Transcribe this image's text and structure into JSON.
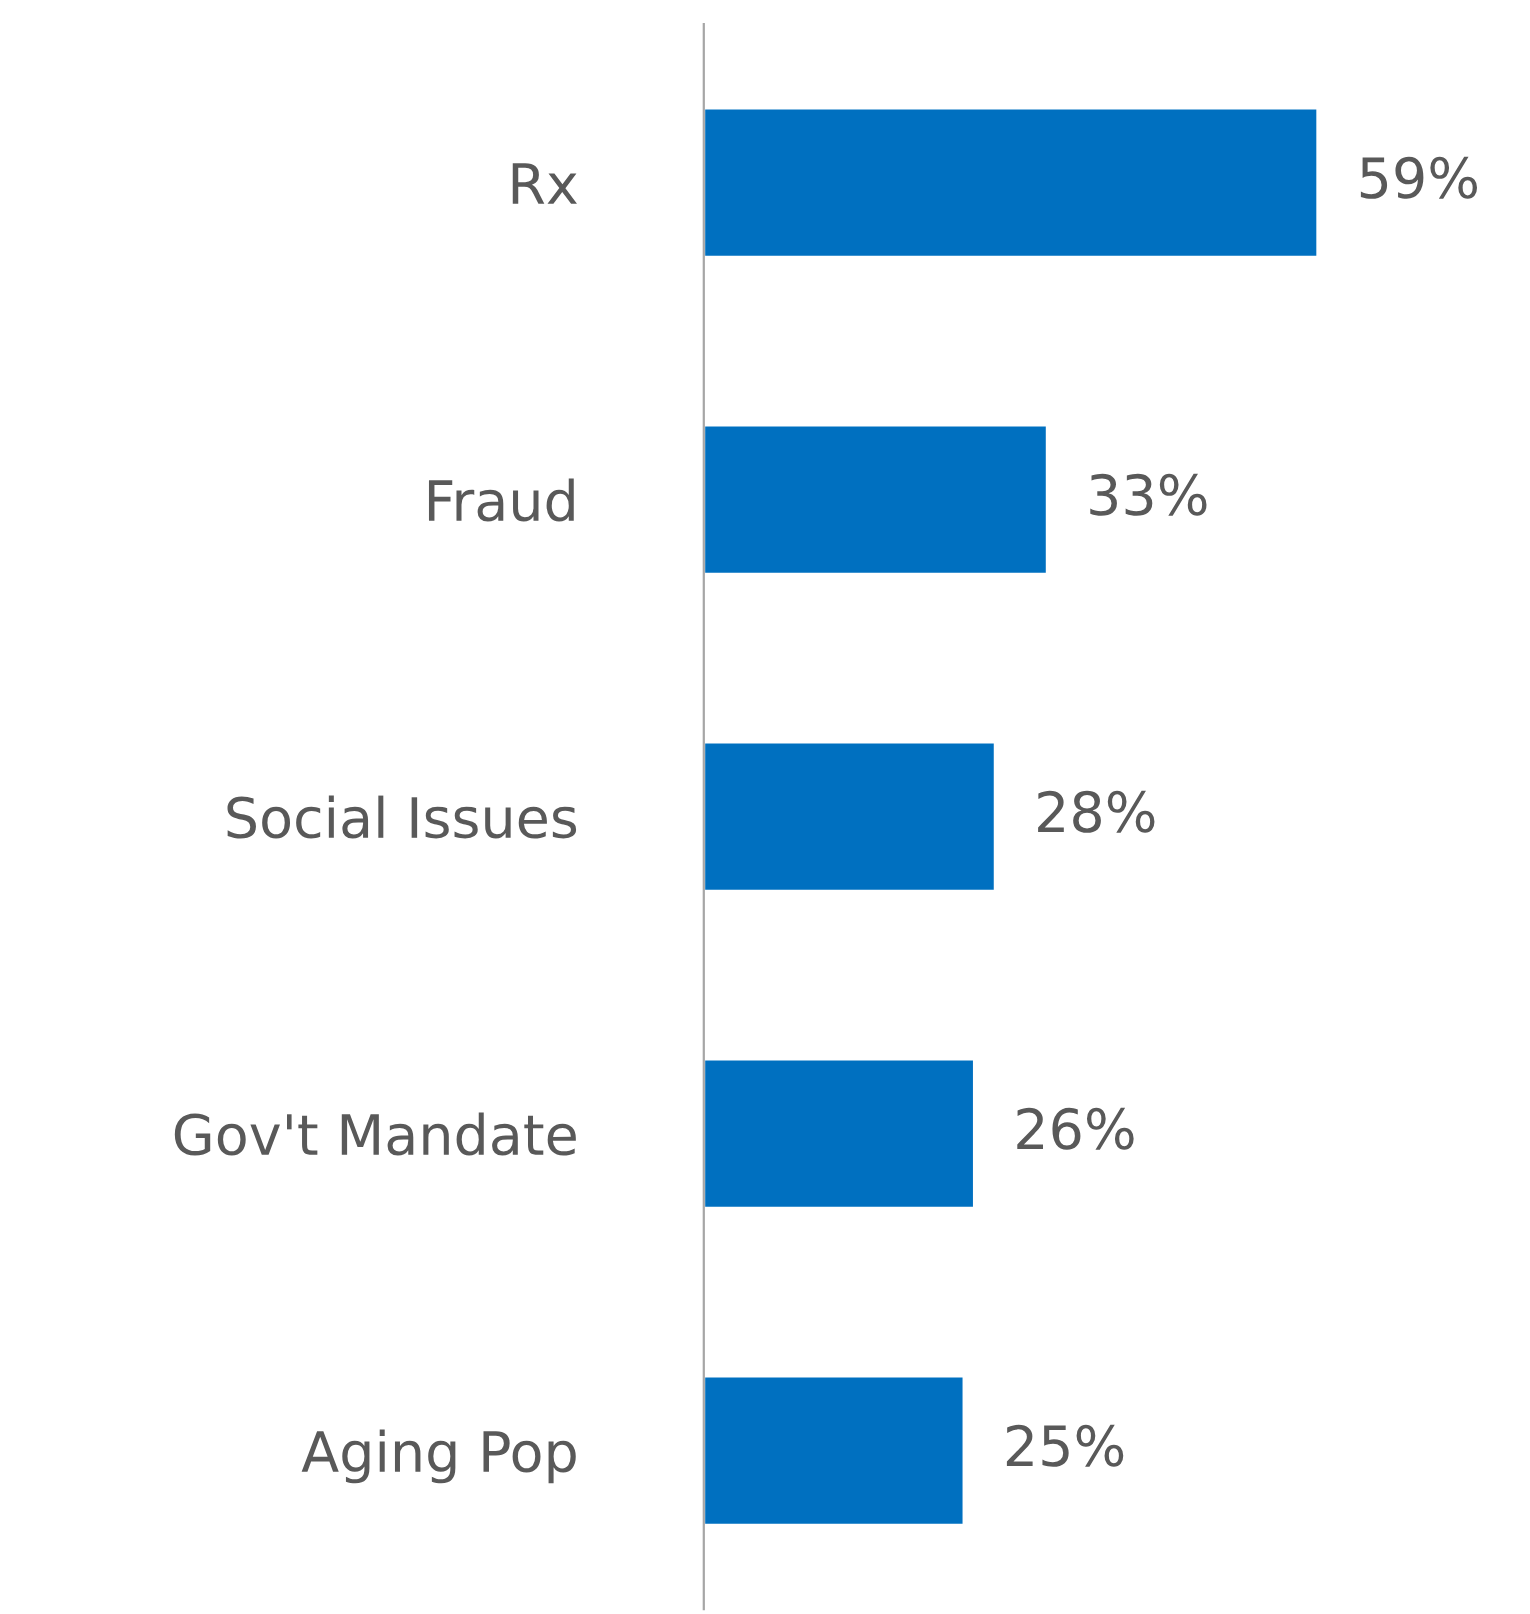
{
  "chart_data": {
    "type": "bar",
    "orientation": "horizontal",
    "categories": [
      "Rx",
      "Fraud",
      "Social Issues",
      "Gov't Mandate",
      "Aging Pop"
    ],
    "values": [
      59,
      33,
      28,
      26,
      25
    ],
    "value_labels": [
      "59%",
      "33%",
      "28%",
      "26%",
      "25%"
    ],
    "color": "#0070c0",
    "tick_labels": "y",
    "grid": false,
    "legend": false
  }
}
